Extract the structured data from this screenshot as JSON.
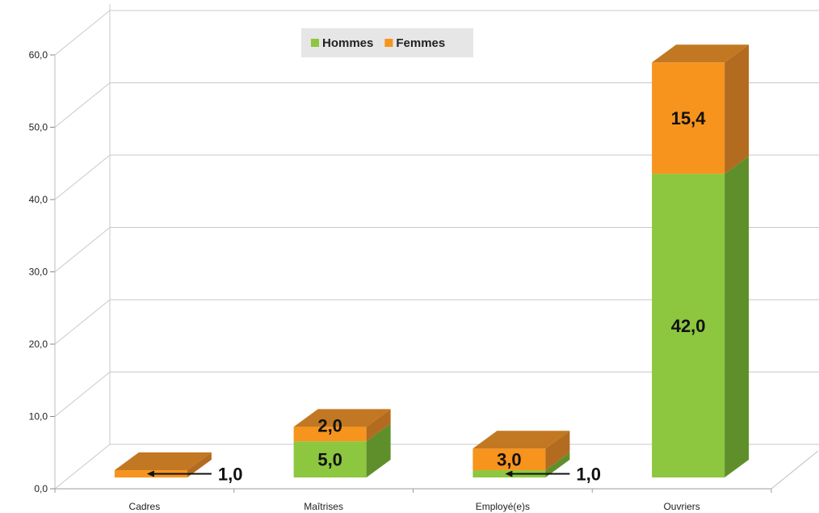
{
  "chart_data": {
    "type": "bar",
    "stacked": true,
    "three_d": true,
    "categories": [
      "Cadres",
      "Maîtrises",
      "Employé(e)s",
      "Ouvriers"
    ],
    "series": [
      {
        "name": "Hommes",
        "values": [
          0,
          5.0,
          1.0,
          42.0
        ],
        "color": "#8dc63f",
        "side_color": "#5f8f2a",
        "top_color": "#79ad35"
      },
      {
        "name": "Femmes",
        "values": [
          1.0,
          2.0,
          3.0,
          15.4
        ],
        "color": "#f7941d",
        "side_color": "#b36b1f",
        "top_color": "#c27822"
      }
    ],
    "data_labels": {
      "Hommes": [
        "",
        "5,0",
        "1,0",
        "42,0"
      ],
      "Femmes": [
        "1,0",
        "2,0",
        "3,0",
        "15,4"
      ]
    },
    "y_ticks": [
      "0,0",
      "10,0",
      "20,0",
      "30,0",
      "40,0",
      "50,0",
      "60,0"
    ],
    "ylim": [
      0,
      60
    ],
    "grid": true,
    "legend_position": "top-center",
    "title": "",
    "xlabel": "",
    "ylabel": ""
  }
}
